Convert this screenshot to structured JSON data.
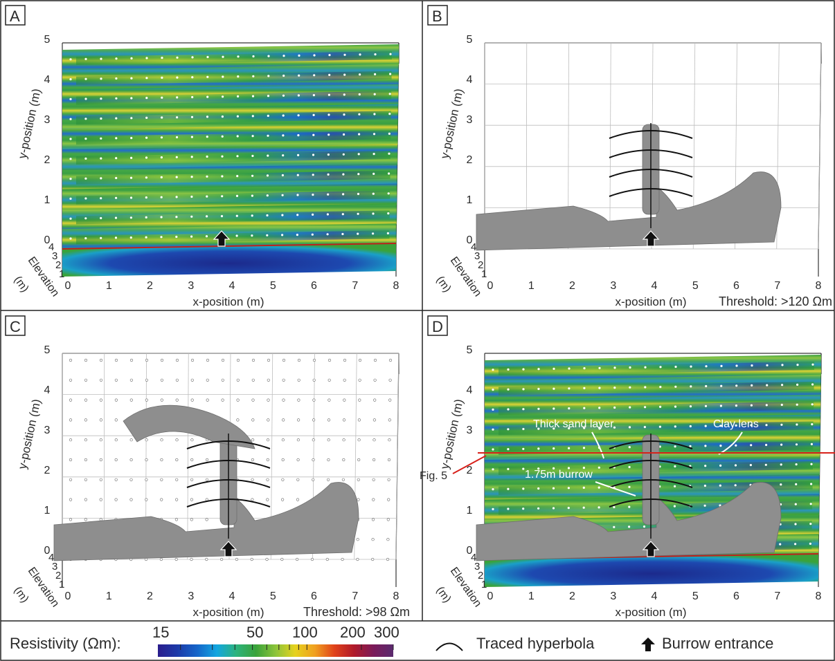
{
  "panels": [
    {
      "letter": "A",
      "kind": "slices",
      "x_axis_label": "x-position (m)",
      "y_axis_label": "y-position (m)",
      "z_axis_label_line1": "Elevation",
      "z_axis_label_line2": "(m)",
      "x_ticks": [
        "0",
        "1",
        "2",
        "3",
        "4",
        "5",
        "6",
        "7",
        "8"
      ],
      "y_ticks": [
        "0",
        "1",
        "2",
        "3",
        "4",
        "5"
      ],
      "z_ticks": [
        "4",
        "3",
        "2",
        "1"
      ],
      "threshold": "",
      "annotations": []
    },
    {
      "letter": "B",
      "kind": "iso",
      "x_axis_label": "x-position (m)",
      "y_axis_label": "y-position (m)",
      "z_axis_label_line1": "Elevation",
      "z_axis_label_line2": "(m)",
      "x_ticks": [
        "0",
        "1",
        "2",
        "3",
        "4",
        "5",
        "6",
        "7",
        "8"
      ],
      "y_ticks": [
        "0",
        "1",
        "2",
        "3",
        "4",
        "5"
      ],
      "z_ticks": [
        "4",
        "3",
        "2",
        "1"
      ],
      "threshold": "Threshold: >120 Ωm",
      "annotations": []
    },
    {
      "letter": "C",
      "kind": "iso",
      "x_axis_label": "x-position (m)",
      "y_axis_label": "y-position (m)",
      "z_axis_label_line1": "Elevation",
      "z_axis_label_line2": "(m)",
      "x_ticks": [
        "0",
        "1",
        "2",
        "3",
        "4",
        "5",
        "6",
        "7",
        "8"
      ],
      "y_ticks": [
        "0",
        "1",
        "2",
        "3",
        "4",
        "5"
      ],
      "z_ticks": [
        "4",
        "3",
        "2",
        "1"
      ],
      "threshold": "Threshold: >98 Ωm",
      "annotations": []
    },
    {
      "letter": "D",
      "kind": "combined",
      "x_axis_label": "x-position (m)",
      "y_axis_label": "y-position (m)",
      "z_axis_label_line1": "Elevation",
      "z_axis_label_line2": "(m)",
      "x_ticks": [
        "0",
        "1",
        "2",
        "3",
        "4",
        "5",
        "6",
        "7",
        "8"
      ],
      "y_ticks": [
        "0",
        "1",
        "2",
        "3",
        "4",
        "5"
      ],
      "z_ticks": [
        "4",
        "3",
        "2",
        "1"
      ],
      "threshold": "",
      "annotations": [
        "Thick sand layer",
        "Clay lens",
        "1.75m burrow",
        "Fig. 5"
      ]
    }
  ],
  "legend": {
    "colorbar_label": "Resistivity (Ωm):",
    "tick_labels": [
      "15",
      "50",
      "100",
      "200",
      "300"
    ],
    "tick_values": [
      15,
      50,
      100,
      200,
      300
    ],
    "range": [
      15,
      300
    ],
    "scale": "log",
    "hyperbola_label": "Traced hyperbola",
    "burrow_label": "Burrow entrance"
  },
  "colors": {
    "colormap": [
      "#2a1d8c",
      "#1c3aa9",
      "#1565c9",
      "#12a6e0",
      "#2cb37d",
      "#3aa33a",
      "#8cc43a",
      "#e6d21e",
      "#f0a020",
      "#e0421a",
      "#b01a2a",
      "#7a1a5a",
      "#5a2a6e"
    ],
    "isosurface": "#8e8e8e",
    "frame": "#222222"
  }
}
